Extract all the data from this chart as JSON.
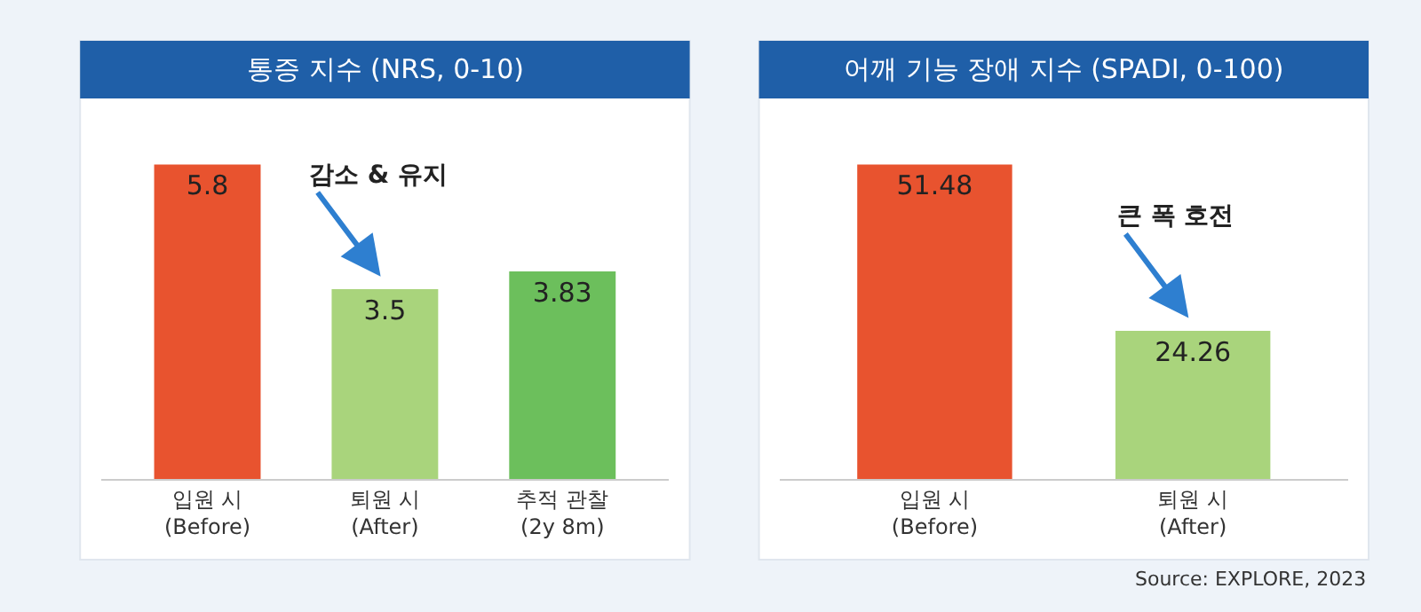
{
  "chart_data": [
    {
      "type": "bar",
      "title": "통증 지수 (NRS, 0-10)",
      "categories": [
        "입원 시\n(Before)",
        "퇴원 시\n(After)",
        "추적 관찰\n(2y 8m)"
      ],
      "values": [
        5.8,
        3.5,
        3.83
      ],
      "colors": [
        "#e8532f",
        "#a9d47c",
        "#6cbf5c"
      ],
      "data_labels": true,
      "annotations": [
        {
          "text": "감소 & 유지",
          "x": "퇴원 시\n(After)",
          "y": 3.5
        }
      ]
    },
    {
      "type": "bar",
      "title": "어깨 기능 장애 지수 (SPADI, 0-100)",
      "categories": [
        "입원 시\n(Before)",
        "퇴원 시\n(After)"
      ],
      "values": [
        51.48,
        24.26
      ],
      "colors": [
        "#e8532f",
        "#a9d47c"
      ],
      "data_labels": true,
      "annotations": [
        {
          "text": "큰 폭 호전",
          "x": "퇴원 시\n(After)",
          "y": 24.26
        },
        "Source: EXPLORE, 2023"
      ]
    }
  ]
}
